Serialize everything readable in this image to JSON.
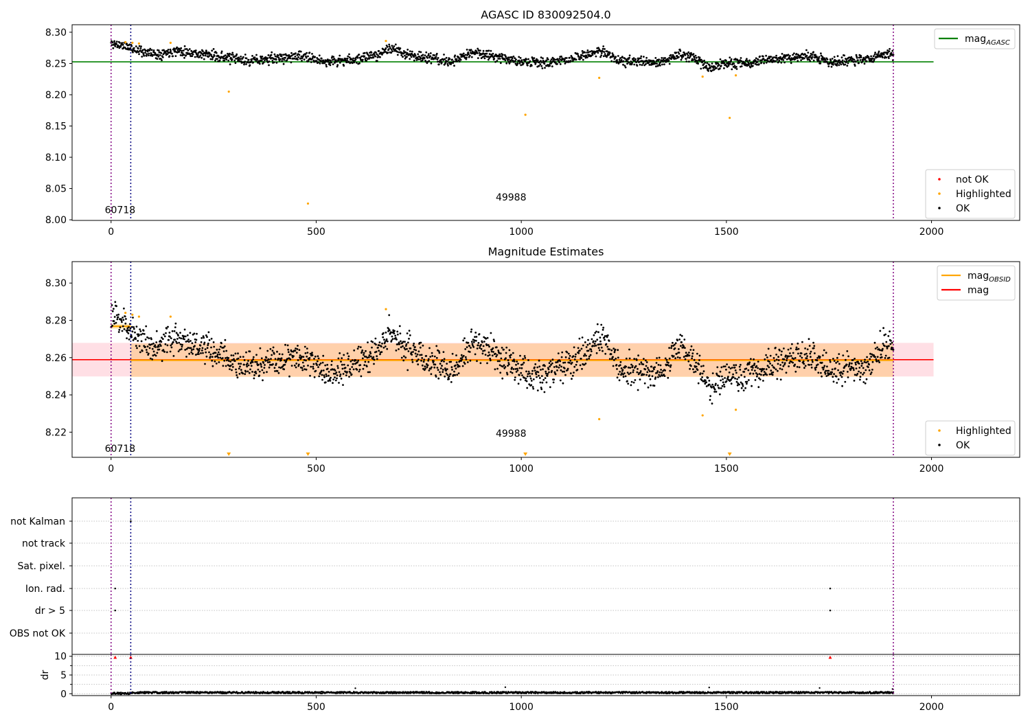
{
  "chart_data": [
    {
      "type": "scatter",
      "title": "AGASC ID 830092504.0",
      "xlim": [
        -95,
        2215
      ],
      "ylim": [
        7.999,
        8.312
      ],
      "x_ticks": [
        0,
        500,
        1000,
        1500,
        2000
      ],
      "y_ticks": [
        8.0,
        8.05,
        8.1,
        8.15,
        8.2,
        8.25,
        8.3
      ],
      "y_tick_labels": [
        "8.00",
        "8.05",
        "8.10",
        "8.15",
        "8.20",
        "8.25",
        "8.30"
      ],
      "vlines": [
        {
          "x": 0,
          "color": "#800080"
        },
        {
          "x": 48,
          "color": "#000080"
        },
        {
          "x": 1907,
          "color": "#800080"
        }
      ],
      "obsid_labels": [
        {
          "text": "60718",
          "x": 22,
          "y": 8.0105
        },
        {
          "text": "49988",
          "x": 975,
          "y": 8.031
        }
      ],
      "hline": {
        "name": "mag AGASC",
        "y": 8.2526,
        "x_range": [
          -95,
          2005
        ],
        "color": "#008000"
      },
      "ok_points": {
        "name": "OK",
        "x_range": [
          0,
          1907
        ],
        "n": 1900,
        "seed": 11,
        "color": "#000000"
      },
      "highlighted": {
        "name": "Highlighted",
        "color": "#ffa500",
        "points": [
          [
            35,
            8.284
          ],
          [
            52,
            8.283
          ],
          [
            68,
            8.282
          ],
          [
            145,
            8.283
          ],
          [
            287,
            8.205
          ],
          [
            480,
            8.026
          ],
          [
            670,
            8.286
          ],
          [
            1010,
            8.168
          ],
          [
            1190,
            8.227
          ],
          [
            1442,
            8.229
          ],
          [
            1508,
            8.163
          ],
          [
            1523,
            8.231
          ]
        ]
      },
      "legend": {
        "top": [
          {
            "label": "mag",
            "sub": "AGASC",
            "kind": "line",
            "color": "#008000"
          }
        ],
        "bottom": [
          {
            "label": "not OK",
            "kind": "dot",
            "color": "#ff0000"
          },
          {
            "label": "Highlighted",
            "kind": "dot",
            "color": "#ffa500"
          },
          {
            "label": "OK",
            "kind": "dot",
            "color": "#000000"
          }
        ]
      }
    },
    {
      "type": "scatter",
      "title": "Magnitude Estimates",
      "xlim": [
        -95,
        2215
      ],
      "ylim": [
        8.2065,
        8.3115
      ],
      "x_ticks": [
        0,
        500,
        1000,
        1500,
        2000
      ],
      "y_ticks": [
        8.22,
        8.24,
        8.26,
        8.28,
        8.3
      ],
      "y_tick_labels": [
        "8.22",
        "8.24",
        "8.26",
        "8.28",
        "8.30"
      ],
      "vlines": [
        {
          "x": 0,
          "color": "#800080"
        },
        {
          "x": 48,
          "color": "#000080"
        },
        {
          "x": 1907,
          "color": "#800080"
        }
      ],
      "obsid_labels": [
        {
          "text": "60718",
          "x": 22,
          "y": 8.2095
        },
        {
          "text": "49988",
          "x": 975,
          "y": 8.2175
        }
      ],
      "mag_line": {
        "name": "mag",
        "y": 8.2589,
        "x_range": [
          -95,
          2005
        ],
        "color": "#ff0000"
      },
      "mag_band": {
        "y_range": [
          8.2499,
          8.2679
        ],
        "x_range": [
          -95,
          2005
        ],
        "color": "#ffc0cb"
      },
      "obsid_segments": [
        {
          "x_range": [
            0,
            48
          ],
          "y": 8.2768,
          "band": [
            8.2755,
            8.2781
          ]
        },
        {
          "x_range": [
            48,
            1907
          ],
          "y": 8.2586,
          "band": [
            8.2496,
            8.2676
          ]
        }
      ],
      "obsid_color": "#ffa500",
      "ok_points": {
        "name": "OK",
        "x_range": [
          0,
          1907
        ],
        "n": 1900,
        "seed": 23,
        "color": "#000000"
      },
      "highlighted": {
        "name": "Highlighted",
        "color": "#ffa500",
        "points": [
          [
            35,
            8.284
          ],
          [
            52,
            8.283
          ],
          [
            68,
            8.282
          ],
          [
            145,
            8.282
          ],
          [
            670,
            8.286
          ],
          [
            1190,
            8.227
          ],
          [
            1442,
            8.229
          ],
          [
            1523,
            8.232
          ]
        ]
      },
      "offscale_markers": [
        287,
        480,
        1010,
        1508
      ],
      "legend": {
        "top": [
          {
            "label": "mag",
            "sub": "OBSID",
            "kind": "line",
            "color": "#ffa500"
          },
          {
            "label": "mag",
            "sub": "",
            "kind": "line",
            "color": "#ff0000"
          }
        ],
        "bottom": [
          {
            "label": "Highlighted",
            "kind": "dot",
            "color": "#ffa500"
          },
          {
            "label": "OK",
            "kind": "dot",
            "color": "#000000"
          }
        ]
      }
    },
    {
      "type": "scatter",
      "title": "",
      "xlim": [
        -95,
        2215
      ],
      "categories": [
        "not Kalman",
        "not track",
        "Sat. pixel.",
        "Ion. rad.",
        "dr > 5",
        "OBS not OK"
      ],
      "vlines": [
        {
          "x": 0,
          "color": "#800080"
        },
        {
          "x": 48,
          "color": "#000080"
        },
        {
          "x": 1907,
          "color": "#800080"
        }
      ],
      "flags": [
        {
          "category": "not Kalman",
          "x": [
            48
          ]
        },
        {
          "category": "Ion. rad.",
          "x": [
            10,
            1753
          ]
        },
        {
          "category": "dr > 5",
          "x": [
            10,
            1753
          ]
        }
      ]
    },
    {
      "type": "scatter",
      "title": "",
      "ylabel": "dr",
      "xlim": [
        -95,
        2215
      ],
      "ylim": [
        -0.5,
        10.5
      ],
      "x_ticks": [
        0,
        500,
        1000,
        1500,
        2000
      ],
      "y_ticks": [
        0,
        5,
        10
      ],
      "y_tick_labels": [
        "0",
        "5",
        "10"
      ],
      "y_minor_ticks": [
        2.5,
        7.5
      ],
      "vlines": [
        {
          "x": 0,
          "color": "#800080"
        },
        {
          "x": 48,
          "color": "#000080"
        },
        {
          "x": 1907,
          "color": "#800080"
        }
      ],
      "dr_points": {
        "x_range": [
          0,
          1907
        ],
        "n": 1900,
        "seed": 37,
        "base": 0.3,
        "color": "#000000"
      },
      "clipped_markers": {
        "x": [
          10,
          48,
          1753
        ],
        "y": 9.8,
        "color": "#ff0000"
      }
    }
  ]
}
